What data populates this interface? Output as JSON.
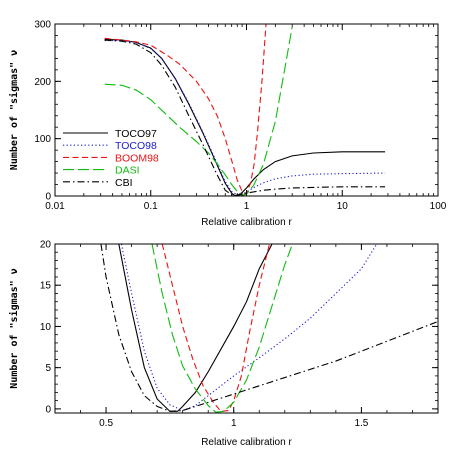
{
  "chart_data": [
    {
      "type": "line",
      "xscale": "log",
      "xlabel": "Relative calibration r",
      "ylabel": "Number of \"sigmas\" ν",
      "xlim": [
        0.01,
        100
      ],
      "ylim": [
        0,
        300
      ],
      "xticks": [
        0.01,
        0.1,
        1,
        10,
        100
      ],
      "xtick_labels": [
        "0.01",
        "0.1",
        "1",
        "10",
        "100"
      ],
      "yticks": [
        0,
        100,
        200,
        300
      ],
      "ytick_labels": [
        "0",
        "100",
        "200",
        "300"
      ],
      "legend_position": "left",
      "series": [
        {
          "name": "TOCO97",
          "color": "#000000",
          "dash": "solid",
          "points": [
            [
              0.033,
              273
            ],
            [
              0.05,
              272
            ],
            [
              0.07,
              268
            ],
            [
              0.1,
              258
            ],
            [
              0.13,
              240
            ],
            [
              0.18,
              205
            ],
            [
              0.25,
              160
            ],
            [
              0.35,
              110
            ],
            [
              0.5,
              52
            ],
            [
              0.6,
              22
            ],
            [
              0.7,
              5
            ],
            [
              0.75,
              1
            ],
            [
              0.8,
              1
            ],
            [
              0.9,
              6
            ],
            [
              1,
              14
            ],
            [
              1.2,
              30
            ],
            [
              1.5,
              46
            ],
            [
              2,
              60
            ],
            [
              3,
              70
            ],
            [
              5,
              75
            ],
            [
              10,
              77
            ],
            [
              28,
              77
            ]
          ]
        },
        {
          "name": "TOCO98",
          "color": "#1a1ad6",
          "dash": "dot",
          "points": [
            [
              0.033,
              271
            ],
            [
              0.05,
              271
            ],
            [
              0.07,
              268
            ],
            [
              0.1,
              257
            ],
            [
              0.13,
              240
            ],
            [
              0.18,
              205
            ],
            [
              0.25,
              162
            ],
            [
              0.35,
              112
            ],
            [
              0.5,
              55
            ],
            [
              0.6,
              25
            ],
            [
              0.7,
              8
            ],
            [
              0.8,
              2
            ],
            [
              0.9,
              3
            ],
            [
              1,
              7
            ],
            [
              1.2,
              15
            ],
            [
              1.5,
              23
            ],
            [
              2,
              30
            ],
            [
              3,
              35
            ],
            [
              5,
              38
            ],
            [
              10,
              39
            ],
            [
              28,
              40
            ]
          ]
        },
        {
          "name": "BOOM98",
          "color": "#ee1111",
          "dash": "dash",
          "points": [
            [
              0.033,
              275
            ],
            [
              0.05,
              272
            ],
            [
              0.07,
              269
            ],
            [
              0.1,
              263
            ],
            [
              0.15,
              245
            ],
            [
              0.2,
              230
            ],
            [
              0.3,
              200
            ],
            [
              0.4,
              170
            ],
            [
              0.5,
              138
            ],
            [
              0.6,
              100
            ],
            [
              0.7,
              62
            ],
            [
              0.8,
              28
            ],
            [
              0.9,
              8
            ],
            [
              0.95,
              3
            ],
            [
              1,
              5
            ],
            [
              1.1,
              22
            ],
            [
              1.2,
              55
            ],
            [
              1.3,
              110
            ],
            [
              1.45,
              200
            ],
            [
              1.6,
              300
            ]
          ]
        },
        {
          "name": "DASI",
          "color": "#11bb11",
          "dash": "longdash",
          "points": [
            [
              0.033,
              195
            ],
            [
              0.05,
              193
            ],
            [
              0.07,
              185
            ],
            [
              0.1,
              168
            ],
            [
              0.15,
              140
            ],
            [
              0.2,
              120
            ],
            [
              0.3,
              95
            ],
            [
              0.4,
              75
            ],
            [
              0.5,
              55
            ],
            [
              0.6,
              37
            ],
            [
              0.7,
              20
            ],
            [
              0.8,
              8
            ],
            [
              0.9,
              1
            ],
            [
              1,
              3
            ],
            [
              1.2,
              20
            ],
            [
              1.5,
              55
            ],
            [
              2,
              130
            ],
            [
              2.5,
              220
            ],
            [
              3,
              295
            ]
          ]
        },
        {
          "name": "CBI",
          "color": "#000000",
          "dash": "dashdot",
          "points": [
            [
              0.033,
              272
            ],
            [
              0.05,
              270
            ],
            [
              0.07,
              265
            ],
            [
              0.1,
              250
            ],
            [
              0.13,
              228
            ],
            [
              0.18,
              190
            ],
            [
              0.25,
              140
            ],
            [
              0.35,
              90
            ],
            [
              0.5,
              35
            ],
            [
              0.6,
              10
            ],
            [
              0.7,
              2
            ],
            [
              0.75,
              1
            ],
            [
              0.85,
              2
            ],
            [
              1,
              5
            ],
            [
              1.5,
              10
            ],
            [
              2,
              12
            ],
            [
              3,
              14
            ],
            [
              5,
              15
            ],
            [
              10,
              16
            ],
            [
              28,
              16
            ]
          ]
        }
      ]
    },
    {
      "type": "line",
      "xscale": "linear",
      "xlabel": "Relative calibration r",
      "ylabel": "Number of \"sigmas\" ν",
      "xlim": [
        0.3,
        1.8
      ],
      "ylim": [
        -0.5,
        20
      ],
      "xticks": [
        0.5,
        1,
        1.5
      ],
      "xtick_labels": [
        "0.5",
        "1",
        "1.5"
      ],
      "yticks": [
        0,
        5,
        10,
        15,
        20
      ],
      "ytick_labels": [
        "0",
        "5",
        "10",
        "15",
        "20"
      ],
      "series": [
        {
          "name": "TOCO97",
          "color": "#000000",
          "dash": "solid",
          "points": [
            [
              0.55,
              20
            ],
            [
              0.6,
              12
            ],
            [
              0.65,
              5
            ],
            [
              0.7,
              1.2
            ],
            [
              0.75,
              -0.3
            ],
            [
              0.78,
              -0.3
            ],
            [
              0.8,
              0.3
            ],
            [
              0.85,
              2
            ],
            [
              0.9,
              4.5
            ],
            [
              1.0,
              10
            ],
            [
              1.05,
              13
            ],
            [
              1.1,
              17
            ],
            [
              1.15,
              20
            ]
          ]
        },
        {
          "name": "TOCO98",
          "color": "#1a1ad6",
          "dash": "dot",
          "points": [
            [
              0.56,
              20
            ],
            [
              0.6,
              14
            ],
            [
              0.65,
              7
            ],
            [
              0.7,
              2.5
            ],
            [
              0.75,
              0.5
            ],
            [
              0.8,
              -0.2
            ],
            [
              0.85,
              0.4
            ],
            [
              0.9,
              1.6
            ],
            [
              1.0,
              4
            ],
            [
              1.1,
              6.2
            ],
            [
              1.2,
              8.5
            ],
            [
              1.3,
              11
            ],
            [
              1.4,
              14
            ],
            [
              1.5,
              17
            ],
            [
              1.56,
              20
            ]
          ]
        },
        {
          "name": "BOOM98",
          "color": "#ee1111",
          "dash": "dash",
          "points": [
            [
              0.72,
              20
            ],
            [
              0.76,
              15
            ],
            [
              0.8,
              10
            ],
            [
              0.84,
              6
            ],
            [
              0.88,
              2.8
            ],
            [
              0.92,
              0.8
            ],
            [
              0.95,
              -0.3
            ],
            [
              0.98,
              -0.2
            ],
            [
              1.0,
              1
            ],
            [
              1.03,
              4
            ],
            [
              1.06,
              9
            ],
            [
              1.1,
              15
            ],
            [
              1.14,
              20
            ]
          ]
        },
        {
          "name": "DASI",
          "color": "#11bb11",
          "dash": "longdash",
          "points": [
            [
              0.68,
              20
            ],
            [
              0.72,
              14
            ],
            [
              0.76,
              9
            ],
            [
              0.8,
              5.2
            ],
            [
              0.85,
              2.4
            ],
            [
              0.9,
              0.4
            ],
            [
              0.93,
              -0.4
            ],
            [
              0.96,
              -0.3
            ],
            [
              1.0,
              0.8
            ],
            [
              1.05,
              3.5
            ],
            [
              1.1,
              7.5
            ],
            [
              1.15,
              12.5
            ],
            [
              1.2,
              17.5
            ],
            [
              1.23,
              20
            ]
          ]
        },
        {
          "name": "CBI",
          "color": "#000000",
          "dash": "dashdot",
          "points": [
            [
              0.48,
              20
            ],
            [
              0.5,
              16
            ],
            [
              0.55,
              9
            ],
            [
              0.6,
              4.5
            ],
            [
              0.65,
              1.6
            ],
            [
              0.7,
              0.3
            ],
            [
              0.75,
              -0.3
            ],
            [
              0.8,
              -0.2
            ],
            [
              0.85,
              0.3
            ],
            [
              0.9,
              0.8
            ],
            [
              1.0,
              1.8
            ],
            [
              1.1,
              2.8
            ],
            [
              1.2,
              3.8
            ],
            [
              1.4,
              5.8
            ],
            [
              1.6,
              8.2
            ],
            [
              1.8,
              10.6
            ]
          ]
        }
      ]
    }
  ]
}
